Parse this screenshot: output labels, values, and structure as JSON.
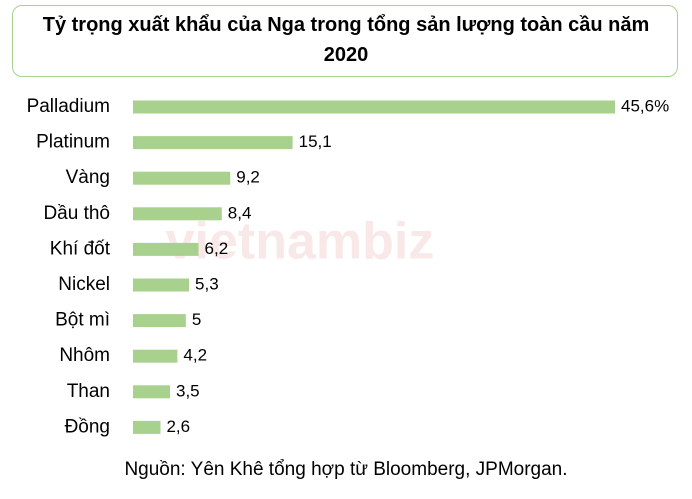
{
  "chart_data": {
    "type": "barh",
    "title": "Tỷ trọng xuất khẩu của Nga trong tổng sản lượng toàn cầu năm 2020",
    "categories": [
      "Palladium",
      "Platinum",
      "Vàng",
      "Dầu thô",
      "Khí đốt",
      "Nickel",
      "Bột mì",
      "Nhôm",
      "Than",
      "Đồng"
    ],
    "values": [
      45.6,
      15.1,
      9.2,
      8.4,
      6.2,
      5.3,
      5,
      4.2,
      3.5,
      2.6
    ],
    "value_labels": [
      "45,6%",
      "15,1",
      "9,2",
      "8,4",
      "6,2",
      "5,3",
      "5",
      "4,2",
      "3,5",
      "2,6"
    ],
    "color": "#a9d18e",
    "source": "Nguồn: Yên Khê tổng hợp từ Bloomberg, JPMorgan.",
    "watermark": "vietnambiz"
  }
}
